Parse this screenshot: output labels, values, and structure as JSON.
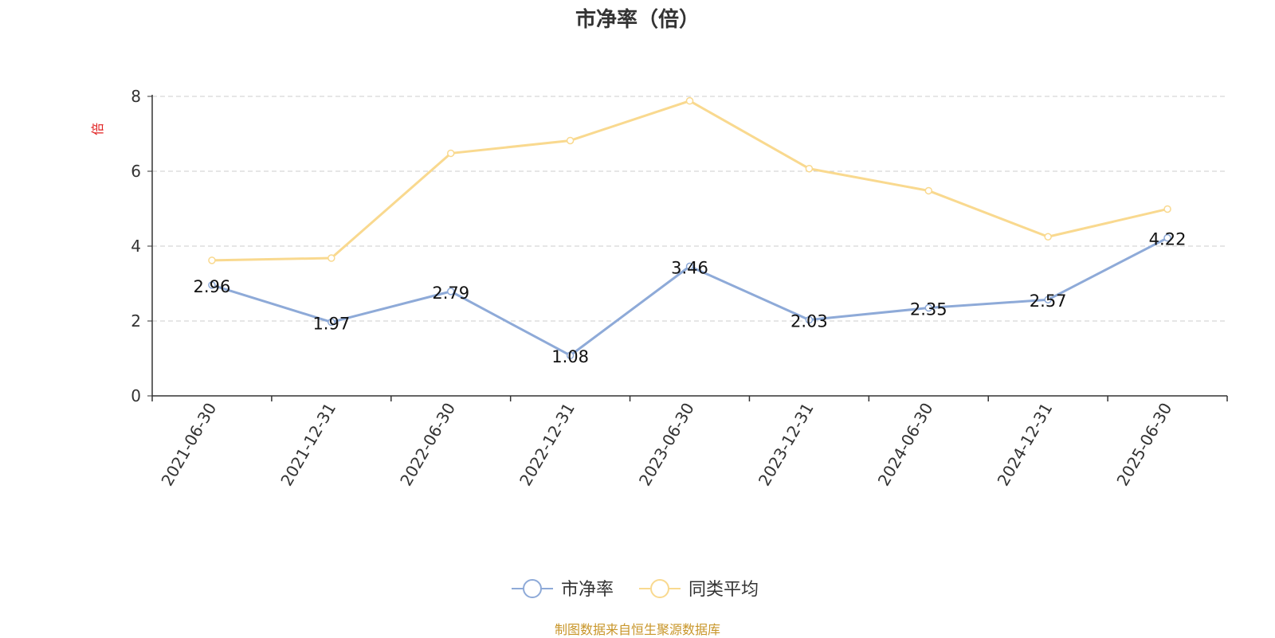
{
  "chart_data": {
    "type": "line",
    "title": "市净率（倍）",
    "ylabel": "倍",
    "xlabel": "",
    "ylim": [
      0,
      8
    ],
    "yticks": [
      0,
      2,
      4,
      6,
      8
    ],
    "grid": true,
    "legend_position": "bottom-center",
    "categories": [
      "2021-06-30",
      "2021-12-31",
      "2022-06-30",
      "2022-12-31",
      "2023-06-30",
      "2023-12-31",
      "2024-06-30",
      "2024-12-31",
      "2025-06-30"
    ],
    "series": [
      {
        "name": "市净率",
        "color": "#8eaad8",
        "values": [
          2.96,
          1.97,
          2.79,
          1.08,
          3.46,
          2.03,
          2.35,
          2.57,
          4.22
        ],
        "data_labels": [
          "2.96",
          "1.97",
          "2.79",
          "1.08",
          "3.46",
          "2.03",
          "2.35",
          "2.57",
          "4.22"
        ]
      },
      {
        "name": "同类平均",
        "color": "#f9d98f",
        "values": [
          3.62,
          3.68,
          6.48,
          6.82,
          7.88,
          6.07,
          5.48,
          4.25,
          4.99
        ]
      }
    ],
    "source_note": "制图数据来自恒生聚源数据库"
  }
}
